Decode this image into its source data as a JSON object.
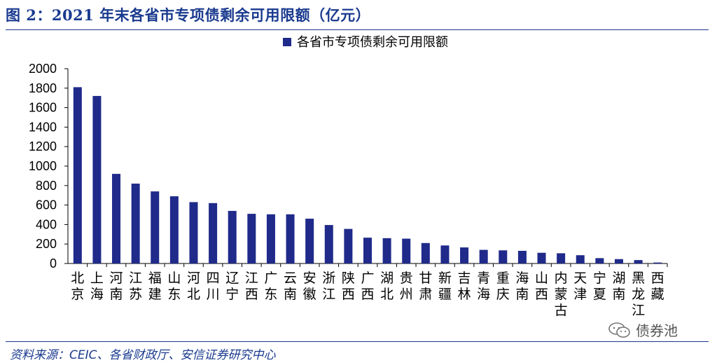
{
  "figure_title": "图 2：2021 年末各省市专项债剩余可用限额（亿元）",
  "source": "资料来源：CEIC、各省财政厅、安信证券研究中心",
  "watermark": "债券池",
  "colors": {
    "bar": "#1f2a8a",
    "title": "#1a3a8f"
  },
  "chart_data": {
    "type": "bar",
    "title": "",
    "xlabel": "",
    "ylabel": "",
    "ylim": [
      0,
      2000
    ],
    "yticks": [
      0,
      200,
      400,
      600,
      800,
      1000,
      1200,
      1400,
      1600,
      1800,
      2000
    ],
    "legend_position": "top",
    "grid": false,
    "categories": [
      "北京",
      "上海",
      "河南",
      "江苏",
      "福建",
      "山东",
      "河北",
      "四川",
      "辽宁",
      "江西",
      "广东",
      "云南",
      "安徽",
      "浙江",
      "陕西",
      "广西",
      "湖北",
      "贵州",
      "甘肃",
      "新疆",
      "吉林",
      "青海",
      "重庆",
      "海南",
      "山西",
      "内蒙古",
      "天津",
      "宁夏",
      "湖南",
      "黑龙江",
      "西藏"
    ],
    "series": [
      {
        "name": "各省市专项债剩余可用限额",
        "values": [
          1810,
          1720,
          920,
          820,
          740,
          690,
          630,
          620,
          540,
          510,
          505,
          505,
          460,
          395,
          355,
          265,
          260,
          255,
          210,
          185,
          165,
          140,
          135,
          130,
          110,
          105,
          85,
          55,
          45,
          35,
          10
        ]
      }
    ]
  }
}
